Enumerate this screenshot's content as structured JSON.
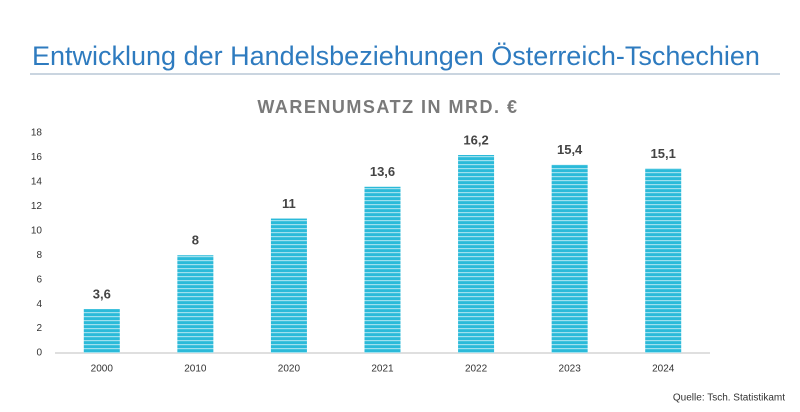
{
  "header": {
    "title": "Entwicklung der Handelsbeziehungen Österreich-Tschechien"
  },
  "chart_data": {
    "type": "bar",
    "title": "WARENUMSATZ IN MRD. €",
    "categories": [
      "2000",
      "2010",
      "2020",
      "2021",
      "2022",
      "2023",
      "2024"
    ],
    "values": [
      3.6,
      8,
      11,
      13.6,
      16.2,
      15.4,
      15.1
    ],
    "value_labels": [
      "3,6",
      "8",
      "11",
      "13,6",
      "16,2",
      "15,4",
      "15,1"
    ],
    "color": "#2bbad9",
    "ylim": [
      0,
      18
    ],
    "yticks": [
      0,
      2,
      4,
      6,
      8,
      10,
      12,
      14,
      16,
      18
    ],
    "grid": false,
    "source": "Quelle: Tsch. Statistikamt"
  }
}
